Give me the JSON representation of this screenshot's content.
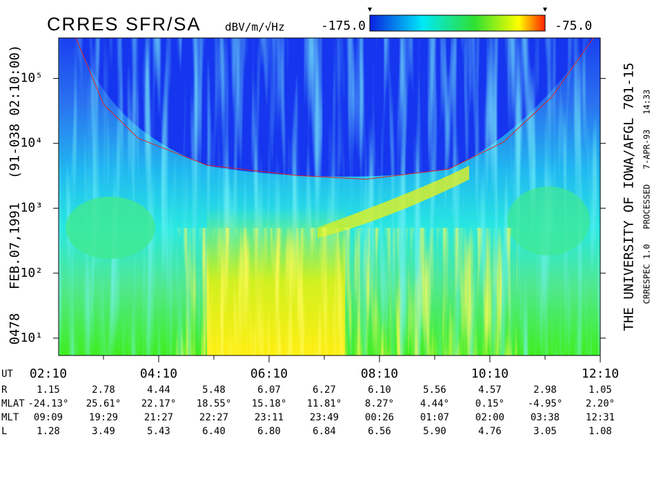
{
  "chart_data": {
    "type": "spectrogram",
    "title": "CRRES SFR/SA",
    "left_label": "0478   FEB.07,1991   (91-038 02:10:00)",
    "right_label": "THE UNIVERSITY OF IOWA/AFGL 701-15",
    "right_note": "CRRESPEC 1.0   PROCESSED   7-APR-93   14:33",
    "colorbar": {
      "label": "dBV/m/√Hz",
      "zlim": [
        -175,
        -75
      ],
      "zticks": [
        {
          "value": -175,
          "label": "-175.0"
        },
        {
          "value": -75,
          "label": "-75.0"
        }
      ]
    },
    "x_axis_label": "UT",
    "xlim": [
      141.25,
      730
    ],
    "xticks": [
      {
        "value": 130,
        "label": "02:10"
      },
      {
        "value": 250,
        "label": "04:10"
      },
      {
        "value": 370,
        "label": "06:10"
      },
      {
        "value": 490,
        "label": "08:10"
      },
      {
        "value": 610,
        "label": "10:10"
      },
      {
        "value": 730,
        "label": "12:10"
      }
    ],
    "xminor": [
      190,
      310,
      430,
      550,
      670
    ],
    "ylim": [
      5.4,
      420000
    ],
    "log_y": true,
    "yticks": [
      {
        "value": 10,
        "label": "10¹"
      },
      {
        "value": 100,
        "label": "10²"
      },
      {
        "value": 1000,
        "label": "10³"
      },
      {
        "value": 10000,
        "label": "10⁴"
      },
      {
        "value": 100000,
        "label": "10⁵"
      }
    ],
    "series": [
      {
        "color": "#e02020",
        "x": [
          160,
          190,
          227.5,
          302.5,
          400,
          475,
          565,
          625,
          677.5,
          722.5
        ],
        "values": [
          420000,
          40000,
          12000,
          4600,
          3200,
          2800,
          4000,
          10500,
          52000,
          420000
        ]
      }
    ],
    "ephemeris": {
      "rows": [
        {
          "label": "R",
          "values": [
            "1.15",
            "2.78",
            "4.44",
            "5.48",
            "6.07",
            "6.27",
            "6.10",
            "5.56",
            "4.57",
            "2.98",
            "1.05"
          ]
        },
        {
          "label": "MLAT",
          "values": [
            "-24.13°",
            "25.61°",
            "22.17°",
            "18.55°",
            "15.18°",
            "11.81°",
            "8.27°",
            "4.44°",
            "0.15°",
            "-4.95°",
            "2.20°"
          ]
        },
        {
          "label": "MLT",
          "values": [
            "09:09",
            "19:29",
            "21:27",
            "22:27",
            "23:11",
            "23:49",
            "00:26",
            "01:07",
            "02:00",
            "03:38",
            "12:31"
          ]
        },
        {
          "label": "L",
          "values": [
            "1.28",
            "3.49",
            "5.43",
            "6.40",
            "6.80",
            "6.84",
            "6.56",
            "5.90",
            "4.76",
            "3.05",
            "1.08"
          ]
        }
      ]
    }
  }
}
